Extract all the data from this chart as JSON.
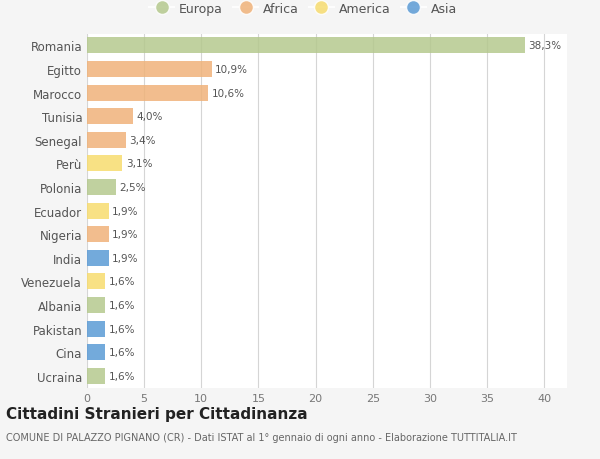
{
  "countries": [
    "Romania",
    "Egitto",
    "Marocco",
    "Tunisia",
    "Senegal",
    "Perù",
    "Polonia",
    "Ecuador",
    "Nigeria",
    "India",
    "Venezuela",
    "Albania",
    "Pakistan",
    "Cina",
    "Ucraina"
  ],
  "values": [
    38.3,
    10.9,
    10.6,
    4.0,
    3.4,
    3.1,
    2.5,
    1.9,
    1.9,
    1.9,
    1.6,
    1.6,
    1.6,
    1.6,
    1.6
  ],
  "labels": [
    "38,3%",
    "10,9%",
    "10,6%",
    "4,0%",
    "3,4%",
    "3,1%",
    "2,5%",
    "1,9%",
    "1,9%",
    "1,9%",
    "1,6%",
    "1,6%",
    "1,6%",
    "1,6%",
    "1,6%"
  ],
  "continents": [
    "Europa",
    "Africa",
    "Africa",
    "Africa",
    "Africa",
    "America",
    "Europa",
    "America",
    "Africa",
    "Asia",
    "America",
    "Europa",
    "Asia",
    "Asia",
    "Europa"
  ],
  "continent_colors": {
    "Europa": "#b5c98e",
    "Africa": "#f0b27a",
    "America": "#f7dc6f",
    "Asia": "#5b9bd5"
  },
  "legend_order": [
    "Europa",
    "Africa",
    "America",
    "Asia"
  ],
  "title": "Cittadini Stranieri per Cittadinanza",
  "subtitle": "COMUNE DI PALAZZO PIGNANO (CR) - Dati ISTAT al 1° gennaio di ogni anno - Elaborazione TUTTITALIA.IT",
  "xlabel_ticks": [
    0,
    5,
    10,
    15,
    20,
    25,
    30,
    35,
    40
  ],
  "xlim": [
    0,
    42
  ],
  "background_color": "#f5f5f5",
  "bar_background_color": "#ffffff",
  "grid_color": "#d5d5d5",
  "label_fontsize": 7.5,
  "bar_label_color": "#555555",
  "ytick_fontsize": 8.5,
  "xtick_fontsize": 8,
  "title_fontsize": 11,
  "subtitle_fontsize": 7,
  "legend_fontsize": 9
}
